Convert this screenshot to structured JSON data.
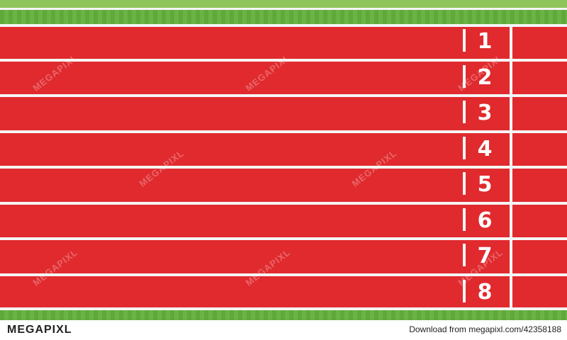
{
  "track": {
    "lane_numbers": [
      "1",
      "2",
      "3",
      "4",
      "5",
      "6",
      "7",
      "8"
    ],
    "colors": {
      "track_red": "#e02a2e",
      "line_white": "#f5f5f5",
      "grass_green": "#5fa83a"
    }
  },
  "watermark": {
    "text": "MEGAPIXL"
  },
  "footer": {
    "brand": "MEGAPIXL",
    "download_text": "Download from megapixl.com/42358188"
  }
}
